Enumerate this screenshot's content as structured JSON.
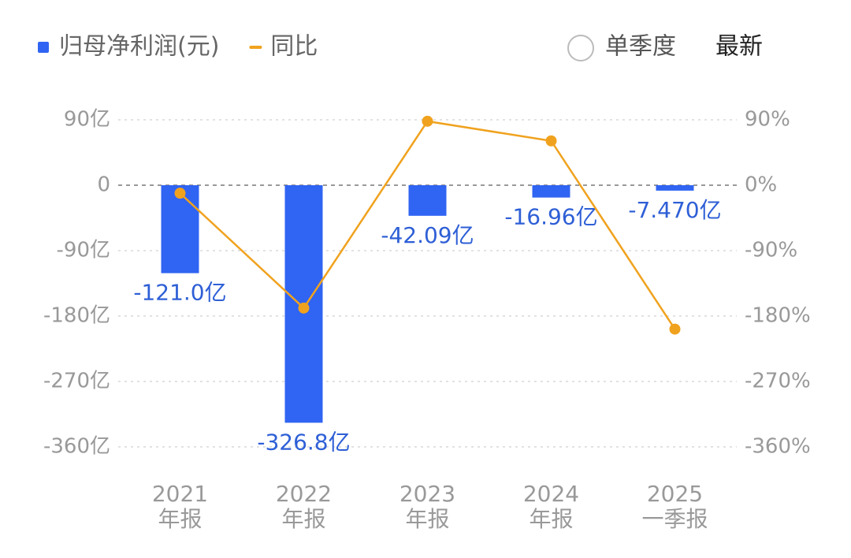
{
  "chart_data": {
    "type": "bar-line",
    "categories": [
      [
        "2021",
        "年报"
      ],
      [
        "2022",
        "年报"
      ],
      [
        "2023",
        "年报"
      ],
      [
        "2024",
        "年报"
      ],
      [
        "2025",
        "一季报"
      ]
    ],
    "series": [
      {
        "name": "归母净利润(元)",
        "type": "bar",
        "color": "#3064f2",
        "values": [
          -121.0,
          -326.8,
          -42.09,
          -16.96,
          -7.47
        ],
        "value_labels": [
          "-121.0亿",
          "-326.8亿",
          "-42.09亿",
          "-16.96亿",
          "-7.470亿"
        ]
      },
      {
        "name": "同比",
        "type": "line",
        "axis": "y2",
        "color": "#f0a21e",
        "values": [
          -11,
          -169,
          88,
          61,
          -198
        ]
      }
    ],
    "ylim": [
      -360,
      90
    ],
    "yticks": [
      {
        "value": 90,
        "label": "90亿"
      },
      0,
      {
        "value": -90,
        "label": "-90亿"
      },
      {
        "value": -180,
        "label": "-180亿"
      },
      {
        "value": -270,
        "label": "-270亿"
      },
      {
        "value": -360,
        "label": "-360亿"
      }
    ],
    "y2lim": [
      -360,
      90
    ],
    "y2ticks": [
      {
        "value": 90,
        "label": "90%"
      },
      {
        "value": 0,
        "label": "0%"
      },
      {
        "value": -90,
        "label": "-90%"
      },
      {
        "value": -180,
        "label": "-180%"
      },
      {
        "value": -270,
        "label": "-270%"
      },
      {
        "value": -360,
        "label": "-360%"
      }
    ],
    "grid": true
  },
  "controls": {
    "toggle": "单季度",
    "period": "最新"
  }
}
